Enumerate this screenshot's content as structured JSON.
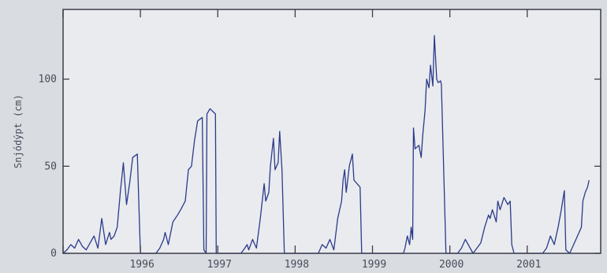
{
  "chart_data": {
    "type": "line",
    "title": "",
    "xlabel": "",
    "ylabel": "Snjódýpt (cm)",
    "xlim": [
      1995.0,
      2001.95
    ],
    "ylim": [
      0,
      140
    ],
    "x_tick_labels": [
      "1996",
      "1997",
      "1998",
      "1999",
      "2000",
      "2001"
    ],
    "x_tick_values": [
      1996,
      1997,
      1998,
      1999,
      2000,
      2001
    ],
    "y_ticks": [
      0,
      50,
      100
    ],
    "grid": false,
    "colors": {
      "line": "#2c3a8c",
      "axis": "#3c3c4c",
      "plot_bg": "#e9ebee",
      "page_bg": "#d9dde1"
    },
    "series": [
      {
        "x": [
          1995.0,
          1995.05,
          1995.1,
          1995.15,
          1995.2,
          1995.25,
          1995.3,
          1995.35,
          1995.4,
          1995.45,
          1995.5,
          1995.55,
          1995.6,
          1995.62,
          1995.66,
          1995.7,
          1995.74,
          1995.78,
          1995.82,
          1995.86,
          1995.9,
          1995.96,
          1996.0,
          1996.2,
          1996.25,
          1996.3,
          1996.32,
          1996.36,
          1996.42,
          1996.48,
          1996.52,
          1996.58,
          1996.62,
          1996.66,
          1996.7,
          1996.74,
          1996.8,
          1996.82,
          1996.85,
          1996.86,
          1996.9,
          1996.97,
          1996.98,
          1997.0,
          1997.3,
          1997.35,
          1997.38,
          1997.4,
          1997.45,
          1997.5,
          1997.55,
          1997.6,
          1997.62,
          1997.66,
          1997.68,
          1997.72,
          1997.74,
          1997.78,
          1997.8,
          1997.83,
          1997.86,
          1997.95,
          1998.3,
          1998.35,
          1998.4,
          1998.45,
          1998.5,
          1998.55,
          1998.6,
          1998.62,
          1998.64,
          1998.66,
          1998.7,
          1998.74,
          1998.76,
          1998.8,
          1998.84,
          1998.86,
          1998.88,
          1998.95,
          1999.4,
          1999.42,
          1999.45,
          1999.48,
          1999.5,
          1999.52,
          1999.53,
          1999.55,
          1999.6,
          1999.63,
          1999.65,
          1999.68,
          1999.7,
          1999.73,
          1999.75,
          1999.78,
          1999.8,
          1999.83,
          1999.85,
          1999.88,
          1999.89,
          1999.95,
          2000.1,
          2000.15,
          2000.2,
          2000.3,
          2000.35,
          2000.4,
          2000.45,
          2000.5,
          2000.52,
          2000.55,
          2000.6,
          2000.62,
          2000.65,
          2000.7,
          2000.75,
          2000.78,
          2000.8,
          2000.83,
          2000.86,
          2000.95,
          2001.2,
          2001.25,
          2001.3,
          2001.35,
          2001.4,
          2001.44,
          2001.48,
          2001.5,
          2001.55,
          2001.6,
          2001.65,
          2001.7,
          2001.72,
          2001.75,
          2001.78,
          2001.8
        ],
        "y": [
          0,
          2,
          5,
          3,
          8,
          4,
          2,
          6,
          10,
          3,
          20,
          5,
          12,
          8,
          10,
          15,
          35,
          52,
          28,
          40,
          55,
          57,
          0,
          0,
          3,
          8,
          12,
          5,
          18,
          22,
          25,
          30,
          48,
          50,
          65,
          76,
          78,
          2,
          0,
          80,
          83,
          80,
          0,
          0,
          0,
          3,
          5,
          2,
          8,
          3,
          20,
          40,
          30,
          35,
          50,
          66,
          48,
          52,
          70,
          48,
          0,
          0,
          0,
          5,
          3,
          8,
          2,
          20,
          30,
          42,
          48,
          35,
          50,
          57,
          42,
          40,
          38,
          0,
          0,
          0,
          0,
          3,
          10,
          5,
          15,
          8,
          72,
          60,
          62,
          55,
          68,
          82,
          100,
          95,
          108,
          96,
          125,
          100,
          98,
          99,
          97,
          0,
          0,
          3,
          8,
          0,
          3,
          6,
          15,
          22,
          20,
          25,
          18,
          30,
          25,
          32,
          28,
          30,
          5,
          0,
          0,
          0,
          0,
          3,
          10,
          5,
          15,
          25,
          36,
          2,
          0,
          5,
          10,
          15,
          30,
          35,
          38,
          42
        ]
      }
    ]
  }
}
